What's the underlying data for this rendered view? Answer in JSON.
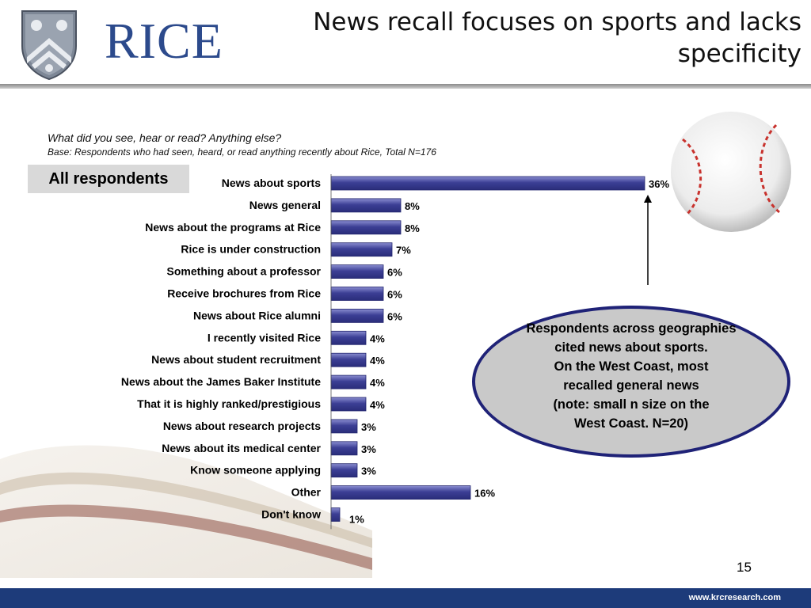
{
  "header": {
    "logo_text": "RICE",
    "title": "News recall focuses on sports and lacks specificity"
  },
  "question": {
    "text": "What did you see, hear or read?  Anything else?",
    "base": "Base: Respondents who had seen, heard, or read anything recently about Rice, Total N=176"
  },
  "segment_label": "All respondents",
  "chart_data": {
    "type": "bar",
    "orientation": "horizontal",
    "categories": [
      "News about sports",
      "News general",
      "News about the programs at Rice",
      "Rice is under construction",
      "Something about a professor",
      "Receive brochures from Rice",
      "News about Rice alumni",
      "I recently visited Rice",
      "News about student recruitment",
      "News about the James Baker Institute",
      "That it is highly ranked/prestigious",
      "News about research projects",
      "News about its medical center",
      "Know someone applying",
      "Other",
      "Don't know"
    ],
    "values": [
      36,
      8,
      8,
      7,
      6,
      6,
      6,
      4,
      4,
      4,
      4,
      3,
      3,
      3,
      16,
      1
    ],
    "value_labels": [
      "36%",
      "8%",
      "8%",
      "7%",
      "6%",
      "6%",
      "6%",
      "4%",
      "4%",
      "4%",
      "4%",
      "3%",
      "3%",
      "3%",
      "16%",
      "1%"
    ],
    "xlim": [
      0,
      36
    ],
    "grid": false,
    "bar_color": "#3c3f95"
  },
  "callout": {
    "text": "Respondents across geographies\ncited news about sports.\nOn the West Coast, most\nrecalled general news\n(note: small n size on the\nWest Coast. N=20)"
  },
  "page_number": "15",
  "footer": {
    "url": "www.krcresearch.com"
  },
  "colors": {
    "brand_blue": "#2c4a8c",
    "footer_blue": "#1d3b7a",
    "bar": "#3c3f95",
    "callout_fill": "#c9c9c9",
    "callout_border": "#1f2277"
  }
}
